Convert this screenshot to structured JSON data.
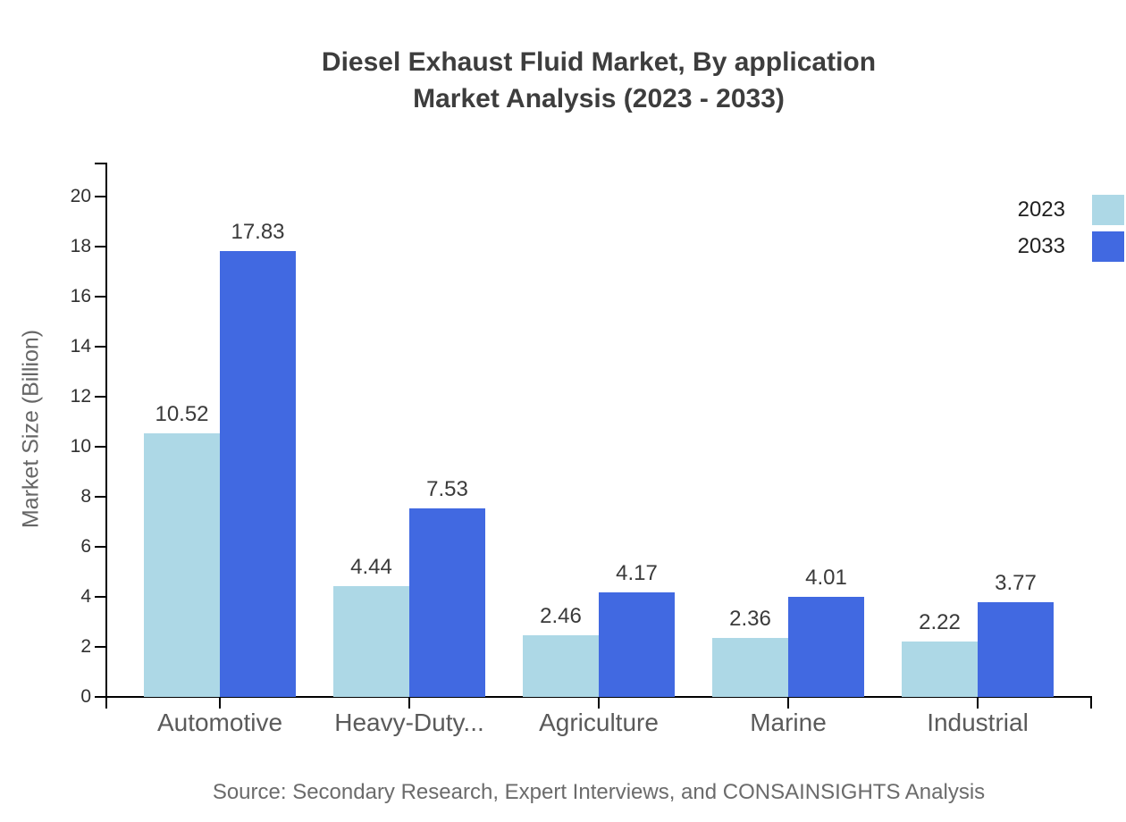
{
  "chart": {
    "title_line1": "Diesel Exhaust Fluid Market, By application",
    "title_line2": "Market Analysis (2023 - 2033)",
    "ylabel": "Market Size (Billion)",
    "source": "Source: Secondary Research, Expert Interviews, and CONSAINSIGHTS Analysis"
  },
  "chart_data": {
    "type": "bar",
    "title": "Diesel Exhaust Fluid Market, By application Market Analysis (2023 - 2033)",
    "xlabel": "",
    "ylabel": "Market Size (Billion)",
    "categories": [
      "Automotive",
      "Heavy-Duty...",
      "Agriculture",
      "Marine",
      "Industrial"
    ],
    "series": [
      {
        "name": "2023",
        "color": "#ADD8E6",
        "values": [
          10.52,
          4.44,
          2.46,
          2.36,
          2.22
        ]
      },
      {
        "name": "2033",
        "color": "#4169E1",
        "values": [
          17.83,
          7.53,
          4.17,
          4.01,
          3.77
        ]
      }
    ],
    "yticks": [
      0,
      2,
      4,
      6,
      8,
      10,
      12,
      14,
      16,
      18,
      20
    ],
    "ylim": [
      0,
      21.4
    ],
    "grid": false,
    "value_labels": true,
    "value_label_format": "2-decimals",
    "legend_position": "top-right",
    "source": "Source: Secondary Research, Expert Interviews, and CONSAINSIGHTS Analysis"
  }
}
